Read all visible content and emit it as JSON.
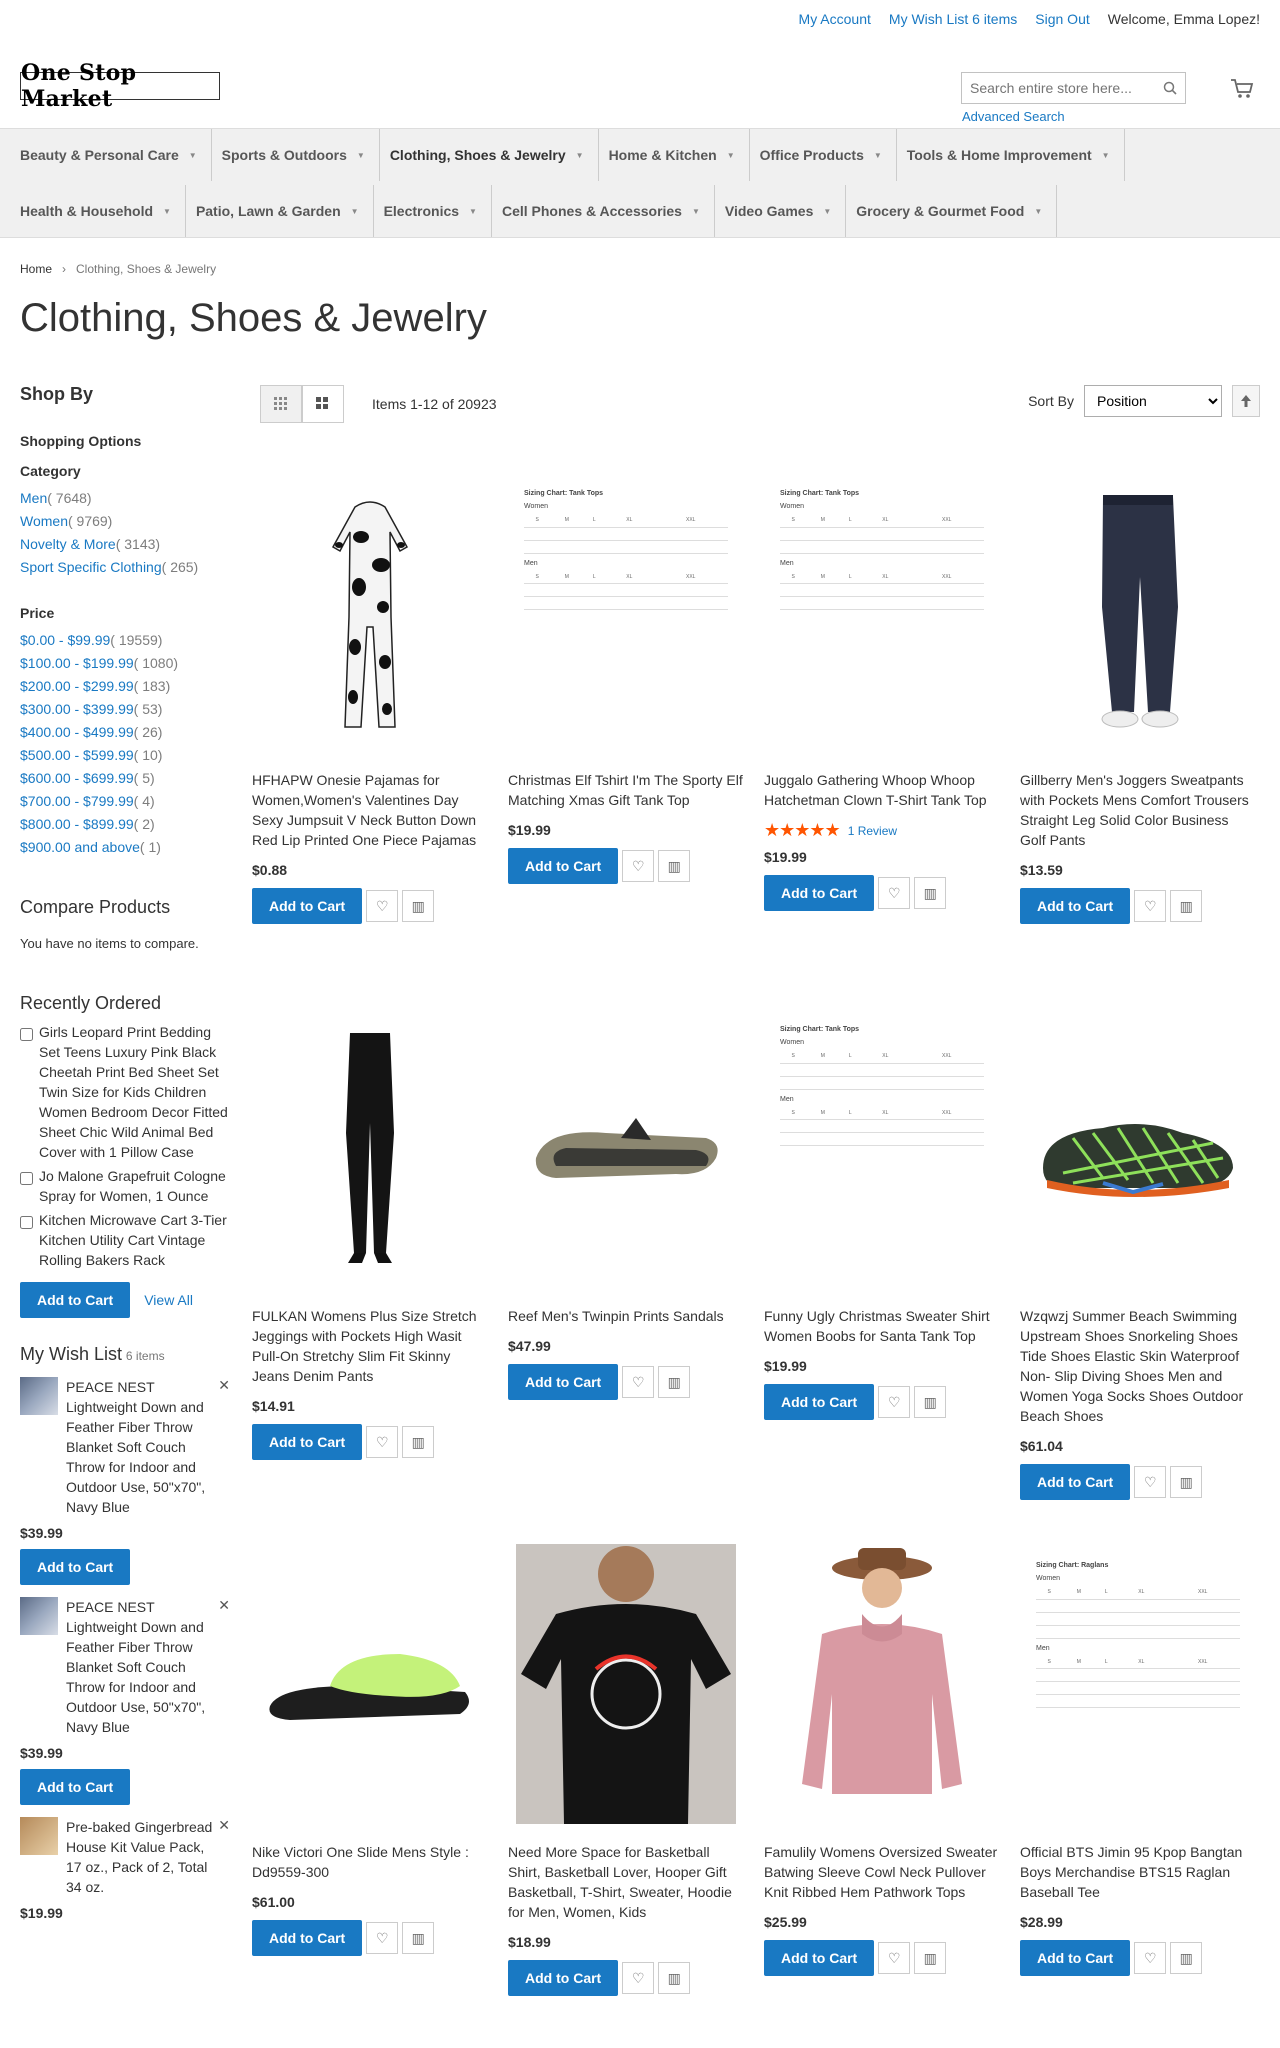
{
  "header": {
    "my_account": "My Account",
    "my_wishlist": "My Wish List 6 items",
    "sign_out": "Sign Out",
    "welcome": "Welcome, Emma Lopez!",
    "logo_text": "One Stop Market",
    "search_placeholder": "Search entire store here...",
    "advanced_search": "Advanced Search"
  },
  "nav": {
    "row1": [
      "Beauty & Personal Care",
      "Sports & Outdoors",
      "Clothing, Shoes & Jewelry",
      "Home & Kitchen",
      "Office Products",
      "Tools & Home Improvement"
    ],
    "row2": [
      "Health & Household",
      "Patio, Lawn & Garden",
      "Electronics",
      "Cell Phones & Accessories",
      "Video Games",
      "Grocery & Gourmet Food"
    ]
  },
  "breadcrumb": {
    "home": "Home",
    "current": "Clothing, Shoes & Jewelry"
  },
  "page_title": "Clothing, Shoes & Jewelry",
  "sidebar": {
    "shop_by": "Shop By",
    "shopping_options": "Shopping Options",
    "category_label": "Category",
    "categories": [
      {
        "label": "Men",
        "count": "( 7648)"
      },
      {
        "label": "Women",
        "count": "( 9769)"
      },
      {
        "label": "Novelty & More",
        "count": "( 3143)"
      },
      {
        "label": "Sport Specific Clothing",
        "count": "( 265)"
      }
    ],
    "price_label": "Price",
    "prices": [
      {
        "label": "$0.00 - $99.99",
        "count": "( 19559)"
      },
      {
        "label": "$100.00 - $199.99",
        "count": "( 1080)"
      },
      {
        "label": "$200.00 - $299.99",
        "count": "( 183)"
      },
      {
        "label": "$300.00 - $399.99",
        "count": "( 53)"
      },
      {
        "label": "$400.00 - $499.99",
        "count": "( 26)"
      },
      {
        "label": "$500.00 - $599.99",
        "count": "( 10)"
      },
      {
        "label": "$600.00 - $699.99",
        "count": "( 5)"
      },
      {
        "label": "$700.00 - $799.99",
        "count": "( 4)"
      },
      {
        "label": "$800.00 - $899.99",
        "count": "( 2)"
      },
      {
        "label": "$900.00 and above",
        "count": "( 1)"
      }
    ],
    "compare_title": "Compare Products",
    "compare_empty": "You have no items to compare.",
    "recent_title": "Recently Ordered",
    "recent_items": [
      "Girls Leopard Print Bedding Set Teens Luxury Pink Black Cheetah Print Bed Sheet Set Twin Size for Kids Children Women Bedroom Decor Fitted Sheet Chic Wild Animal Bed Cover with 1 Pillow Case",
      "Jo Malone Grapefruit Cologne Spray for Women, 1 Ounce",
      "Kitchen Microwave Cart 3-Tier Kitchen Utility Cart Vintage Rolling Bakers Rack"
    ],
    "add_to_cart": "Add to Cart",
    "view_all": "View All",
    "wishlist_title": "My Wish List",
    "wishlist_count": "6 items",
    "wishlist_items": [
      {
        "name": "PEACE NEST Lightweight Down and Feather Fiber Throw Blanket Soft Couch Throw for Indoor and Outdoor Use, 50\"x70\", Navy Blue",
        "price": "$39.99"
      },
      {
        "name": "PEACE NEST Lightweight Down and Feather Fiber Throw Blanket Soft Couch Throw for Indoor and Outdoor Use, 50\"x70\", Navy Blue",
        "price": "$39.99"
      },
      {
        "name": "Pre-baked Gingerbread House Kit Value Pack, 17 oz., Pack of 2, Total 34 oz.",
        "price": "$19.99"
      }
    ]
  },
  "toolbar": {
    "amount": "Items 1-12 of 20923",
    "sort_by": "Sort By",
    "sort_value": "Position"
  },
  "products": [
    {
      "name": "HFHAPW Onesie Pajamas for Women,Women's Valentines Day Sexy Jumpsuit V Neck Button Down Red Lip Printed One Piece Pajamas",
      "price": "$0.88",
      "image": "cow-print-onesie"
    },
    {
      "name": "Christmas Elf Tshirt I'm The Sporty Elf Matching Xmas Gift Tank Top",
      "price": "$19.99",
      "image": "size-chart-tank-tops"
    },
    {
      "name": "Juggalo Gathering Whoop Whoop Hatchetman Clown T-Shirt Tank Top",
      "price": "$19.99",
      "image": "size-chart-tank-tops",
      "rating": "★★★★★",
      "reviews": "1 Review"
    },
    {
      "name": "Gillberry Men's Joggers Sweatpants with Pockets Mens Comfort Trousers Straight Leg Solid Color Business Golf Pants",
      "price": "$13.59",
      "image": "navy-joggers"
    },
    {
      "name": "FULKAN Womens Plus Size Stretch Jeggings with Pockets High Wasit Pull-On Stretchy Slim Fit Skinny Jeans Denim Pants",
      "price": "$14.91",
      "image": "black-jeggings"
    },
    {
      "name": "Reef Men's Twinpin Prints Sandals",
      "price": "$47.99",
      "image": "flip-flop-sandal"
    },
    {
      "name": "Funny Ugly Christmas Sweater Shirt Women Boobs for Santa Tank Top",
      "price": "$19.99",
      "image": "size-chart-tank-tops"
    },
    {
      "name": "Wzqwzj Summer Beach Swimming Upstream Shoes Snorkeling Shoes Tide Shoes Elastic Skin Waterproof Non- Slip Diving Shoes Men and Women Yoga Socks Shoes Outdoor Beach Shoes",
      "price": "$61.04",
      "image": "water-shoe"
    },
    {
      "name": "Nike Victori One Slide Mens Style : Dd9559-300",
      "price": "$61.00",
      "image": "slide-sandal"
    },
    {
      "name": "Need More Space for Basketball Shirt, Basketball Lover, Hooper Gift Basketball, T-Shirt, Sweater, Hoodie for Men, Women, Kids",
      "price": "$18.99",
      "image": "basketball-tshirt"
    },
    {
      "name": "Famulily Womens Oversized Sweater Batwing Sleeve Cowl Neck Pullover Knit Ribbed Hem Pathwork Tops",
      "price": "$25.99",
      "image": "pink-sweater"
    },
    {
      "name": "Official BTS Jimin 95 Kpop Bangtan Boys Merchandise BTS15 Raglan Baseball Tee",
      "price": "$28.99",
      "image": "size-chart-raglans"
    }
  ],
  "chart_titles": {
    "tank": "Sizing Chart: Tank Tops",
    "raglan": "Sizing Chart: Raglans",
    "women": "Women",
    "men": "Men"
  },
  "add_to_cart": "Add to Cart",
  "colors": {
    "primary": "#1979c3",
    "star": "#ff5501"
  }
}
